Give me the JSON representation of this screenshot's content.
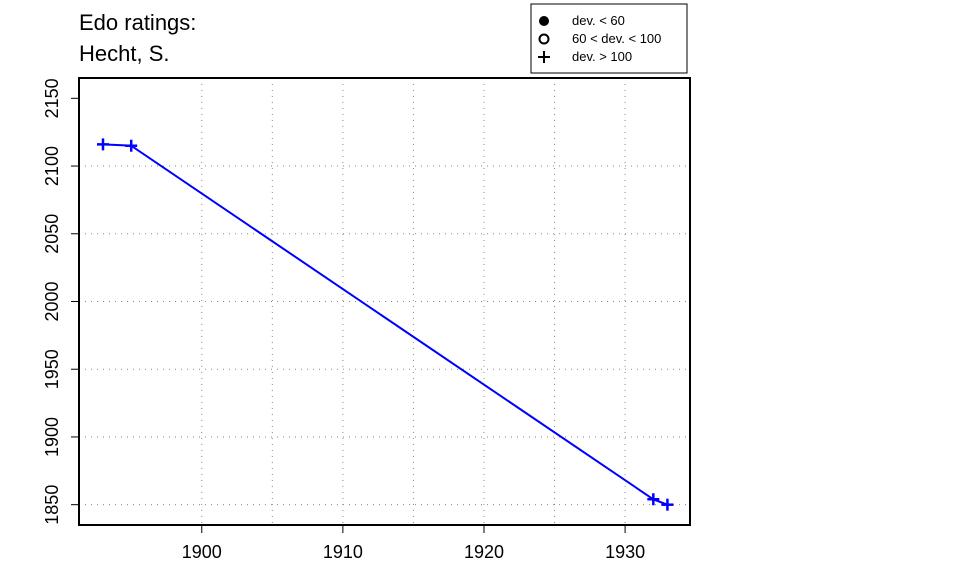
{
  "chart_data": {
    "type": "line",
    "title_lines": [
      "Edo ratings:",
      "Hecht, S."
    ],
    "xlabel": "",
    "ylabel": "",
    "xlim": [
      1891.3,
      1934.6
    ],
    "ylim": [
      1835,
      2165
    ],
    "x_ticks": [
      1900,
      1910,
      1920,
      1930
    ],
    "y_ticks": [
      1850,
      1900,
      1950,
      2000,
      2050,
      2100,
      2150
    ],
    "x_grid": [
      1900,
      1905,
      1910,
      1915,
      1920,
      1925,
      1930
    ],
    "y_grid": [
      1850,
      1900,
      1950,
      2000,
      2050,
      2100
    ],
    "grid": true,
    "line_color": "#0000ff",
    "series": [
      {
        "x": [
          1893,
          1895,
          1932,
          1933
        ],
        "y": [
          2116,
          2115,
          1854,
          1850
        ],
        "markers": [
          "plus",
          "plus",
          "plus",
          "plus"
        ]
      }
    ],
    "legend": {
      "position": "top-right",
      "entries": [
        {
          "label": "dev. < 60",
          "marker": "filled-circle"
        },
        {
          "label": "60 < dev. < 100",
          "marker": "open-circle"
        },
        {
          "label": "dev. > 100",
          "marker": "plus"
        }
      ]
    }
  }
}
